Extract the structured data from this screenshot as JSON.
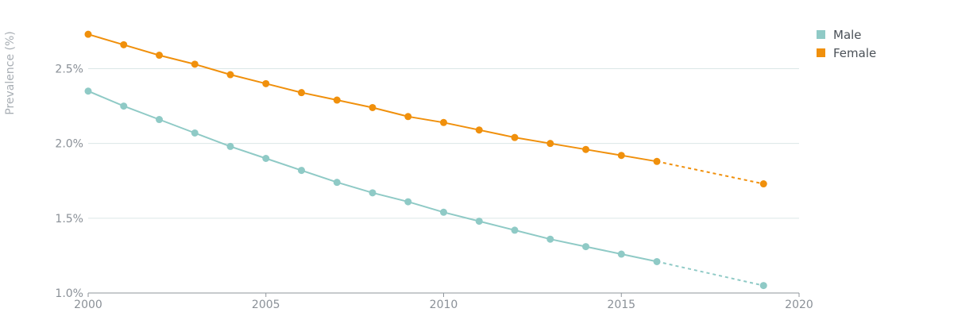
{
  "chart_data": {
    "type": "line",
    "ylabel": "Prevalence (%)",
    "xlabel": "",
    "xlim": [
      2000,
      2020
    ],
    "ylim": [
      1.0,
      2.8
    ],
    "x_ticks": [
      2000,
      2005,
      2010,
      2015,
      2020
    ],
    "y_ticks": [
      1.0,
      1.5,
      2.0,
      2.5
    ],
    "y_tick_labels": [
      "1.0%",
      "1.5%",
      "2.0%",
      "2.5%"
    ],
    "grid": "horizontal",
    "legend_position": "top-right",
    "series": [
      {
        "name": "Male",
        "color": "#8fcac6",
        "x": [
          2000,
          2001,
          2002,
          2003,
          2004,
          2005,
          2006,
          2007,
          2008,
          2009,
          2010,
          2011,
          2012,
          2013,
          2014,
          2015,
          2016,
          2019
        ],
        "y": [
          2.35,
          2.25,
          2.16,
          2.07,
          1.98,
          1.9,
          1.82,
          1.74,
          1.67,
          1.61,
          1.54,
          1.48,
          1.42,
          1.36,
          1.31,
          1.26,
          1.21,
          1.05
        ],
        "projected_from": 2016
      },
      {
        "name": "Female",
        "color": "#f0900c",
        "x": [
          2000,
          2001,
          2002,
          2003,
          2004,
          2005,
          2006,
          2007,
          2008,
          2009,
          2010,
          2011,
          2012,
          2013,
          2014,
          2015,
          2016,
          2019
        ],
        "y": [
          2.73,
          2.66,
          2.59,
          2.53,
          2.46,
          2.4,
          2.34,
          2.29,
          2.24,
          2.18,
          2.14,
          2.09,
          2.04,
          2.0,
          1.96,
          1.92,
          1.88,
          1.73
        ],
        "projected_from": 2016
      }
    ]
  }
}
